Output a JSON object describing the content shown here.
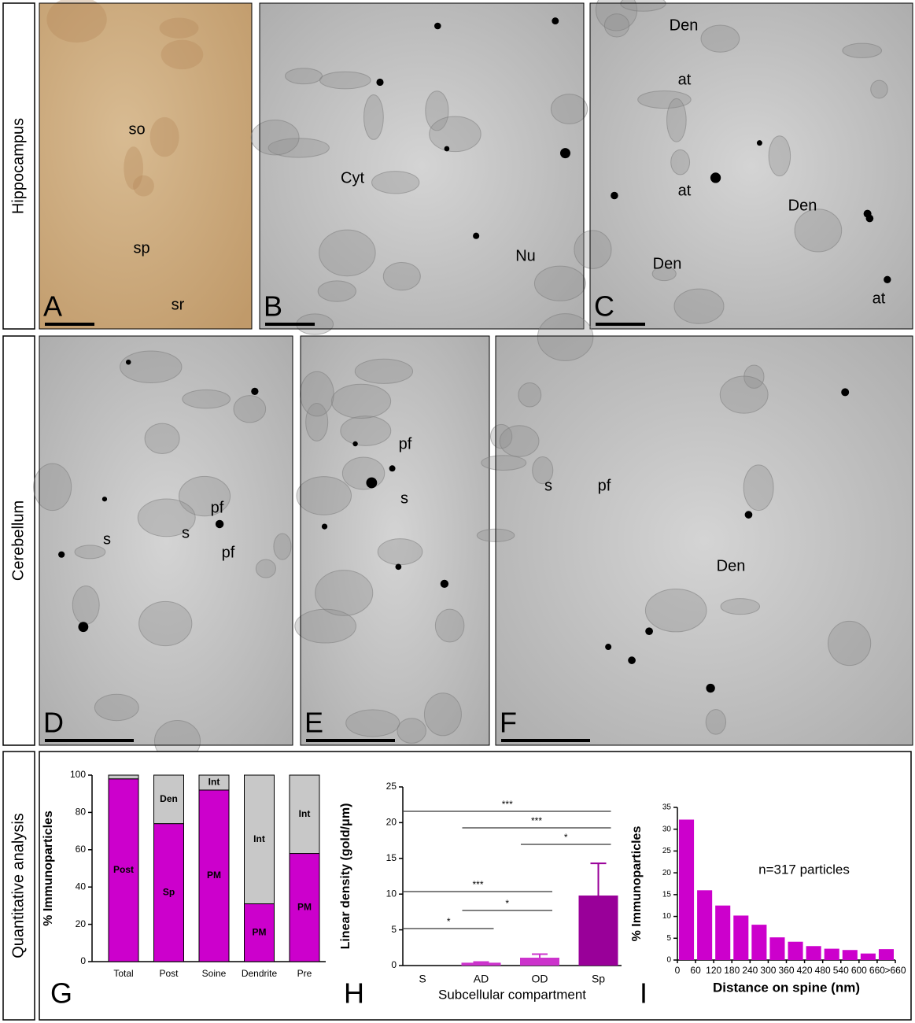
{
  "row_labels": [
    "Hippocampus",
    "Cerebellum",
    "Quantitative analysis"
  ],
  "panels": [
    {
      "letter": "A",
      "labels": [
        "so",
        "sp",
        "sr"
      ]
    },
    {
      "letter": "B",
      "labels": [
        "Cyt",
        "Nu"
      ]
    },
    {
      "letter": "C",
      "labels": [
        "Den",
        "at",
        "at",
        "Den",
        "Den",
        "at"
      ]
    },
    {
      "letter": "D",
      "labels": [
        "pf",
        "s",
        "s",
        "pf"
      ]
    },
    {
      "letter": "E",
      "labels": [
        "pf",
        "s"
      ]
    },
    {
      "letter": "F",
      "labels": [
        "s",
        "pf",
        "Den"
      ]
    }
  ],
  "chart_data": [
    {
      "type": "stacked_bar",
      "letter": "G",
      "ylabel": "% Immunoparticles",
      "categories": [
        "Total",
        "Post",
        "Soine",
        "Dendrite",
        "Pre"
      ],
      "series": [
        {
          "color": "#cc00cc",
          "values": [
            98,
            74,
            92,
            31,
            58
          ],
          "labels": [
            "Post",
            "Sp",
            "PM",
            "PM",
            "PM"
          ]
        },
        {
          "color": "#c8c8c8",
          "values": [
            2,
            26,
            8,
            69,
            42
          ],
          "labels": [
            null,
            "Den",
            "Int",
            "Int",
            "Int"
          ]
        }
      ],
      "ylim": [
        0,
        100
      ],
      "yticks": [
        0,
        20,
        40,
        60,
        80,
        100
      ]
    },
    {
      "type": "bar",
      "letter": "H",
      "ylabel": "Linear density (gold/μm)",
      "xlabel": "Subcellular compartment",
      "categories": [
        "S",
        "AD",
        "OD",
        "Sp"
      ],
      "values": [
        0,
        0.4,
        1.1,
        9.8
      ],
      "errors": [
        0,
        0.1,
        0.5,
        4.5
      ],
      "colors": [
        "#cc33cc",
        "#cc33cc",
        "#cc33cc",
        "#990099"
      ],
      "ylim": [
        0,
        25
      ],
      "yticks": [
        0,
        5,
        10,
        15,
        20,
        25
      ],
      "comparisons": [
        {
          "from": "S",
          "to": "Sp",
          "text": "***"
        },
        {
          "from": "AD",
          "to": "Sp",
          "text": "***"
        },
        {
          "from": "OD",
          "to": "Sp",
          "text": "*"
        },
        {
          "from": "S",
          "to": "OD",
          "text": "***"
        },
        {
          "from": "AD",
          "to": "OD",
          "text": "*"
        },
        {
          "from": "S",
          "to": "AD",
          "text": "*"
        }
      ]
    },
    {
      "type": "histogram",
      "letter": "I",
      "ylabel": "% Immunoparticles",
      "xlabel": "Distance on spine (nm)",
      "annotation": "n=317 particles",
      "color": "#cc00cc",
      "bins": [
        0,
        60,
        120,
        180,
        240,
        300,
        360,
        420,
        480,
        540,
        600,
        660,
        720
      ],
      "values": [
        32.2,
        16,
        12.5,
        10.2,
        8.1,
        5.2,
        4.2,
        3.2,
        2.6,
        2.3,
        1.5,
        2.5
      ],
      "xlim": [
        0,
        720
      ],
      "xticks": [
        0,
        60,
        120,
        180,
        240,
        300,
        360,
        420,
        480,
        540,
        600,
        660,
        {
          "value": 720,
          "label": ">660"
        }
      ],
      "ylim": [
        0,
        35
      ],
      "yticks": [
        0,
        5,
        10,
        15,
        20,
        25,
        30,
        35
      ]
    }
  ]
}
